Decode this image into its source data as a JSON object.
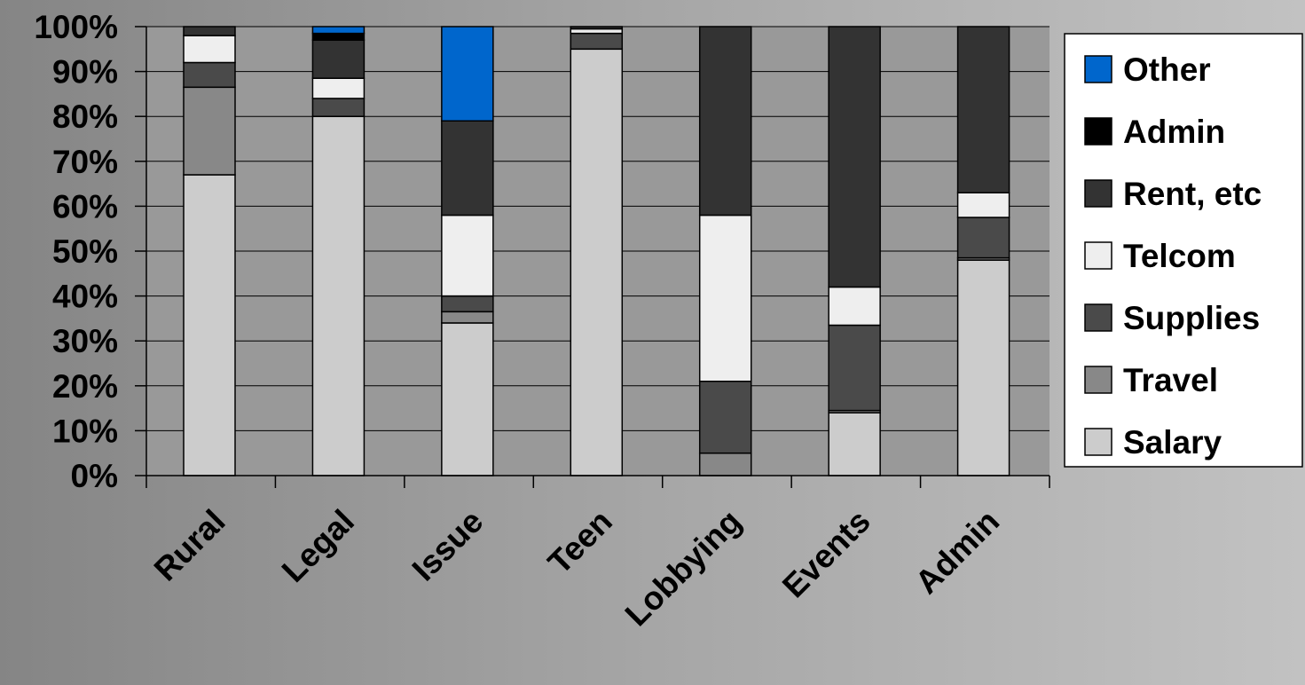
{
  "chart_data": {
    "type": "bar",
    "stacked": true,
    "percent": true,
    "title": "",
    "xlabel": "",
    "ylabel": "",
    "ylim": [
      0,
      100
    ],
    "yticks": [
      "0%",
      "10%",
      "20%",
      "30%",
      "40%",
      "50%",
      "60%",
      "70%",
      "80%",
      "90%",
      "100%"
    ],
    "grid": true,
    "legend_position": "right",
    "categories": [
      "Rural",
      "Legal",
      "Issue",
      "Teen",
      "Lobbying",
      "Events",
      "Admin"
    ],
    "series": [
      {
        "name": "Salary",
        "color": "#cccccc",
        "values": [
          67,
          80,
          34,
          95,
          0,
          14,
          48
        ]
      },
      {
        "name": "Travel",
        "color": "#888888",
        "values": [
          19.5,
          0,
          2.5,
          0,
          5,
          0.5,
          0.5
        ]
      },
      {
        "name": "Supplies",
        "color": "#4a4a4a",
        "values": [
          5.5,
          4,
          3.5,
          3.5,
          16,
          19,
          9
        ]
      },
      {
        "name": "Telcom",
        "color": "#eeeeee",
        "values": [
          6,
          4.5,
          18,
          1,
          37,
          8.5,
          5.5
        ]
      },
      {
        "name": "Rent, etc",
        "color": "#333333",
        "values": [
          2,
          8.5,
          21,
          0.5,
          42,
          58,
          37
        ]
      },
      {
        "name": "Admin",
        "color": "#000000",
        "values": [
          0,
          1.5,
          0,
          0,
          0,
          0,
          0
        ]
      },
      {
        "name": "Other",
        "color": "#0066cc",
        "values": [
          0,
          1.5,
          21,
          0,
          0,
          0,
          0
        ]
      }
    ],
    "legend_order": [
      "Other",
      "Admin",
      "Rent, etc",
      "Telcom",
      "Supplies",
      "Travel",
      "Salary"
    ]
  }
}
